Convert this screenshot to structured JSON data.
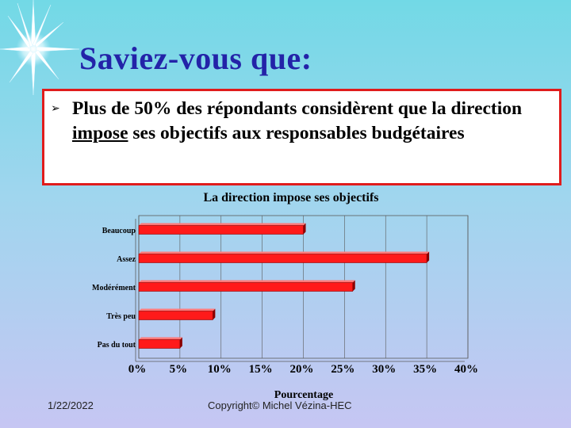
{
  "slide": {
    "title": "Saviez-vous que:",
    "bullet_text_before": "Plus de 50% des répondants considèrent que la direction ",
    "bullet_text_underlined": "impose",
    "bullet_text_after": " ses objectifs aux responsables budgétaires",
    "date": "1/22/2022",
    "copyright": "Copyright© Michel Vézina-HEC"
  },
  "icons": {
    "bullet": "arrow-right-icon",
    "decoration": "starburst-icon"
  },
  "colors": {
    "title": "#2323a8",
    "callout_border": "#e01c1c",
    "bar": "#ff1a1a",
    "bar_edge": "#8a0000"
  },
  "chart_data": {
    "type": "bar",
    "orientation": "horizontal",
    "title": "La direction impose ses objectifs",
    "xlabel": "Pourcentage",
    "ylabel": "",
    "categories": [
      "Beaucoup",
      "Assez",
      "Modérément",
      "Très peu",
      "Pas du tout"
    ],
    "values": [
      0.2,
      0.35,
      0.26,
      0.09,
      0.05
    ],
    "xlim": [
      0,
      0.4
    ],
    "xticks": [
      0,
      0.05,
      0.1,
      0.15,
      0.2,
      0.25,
      0.3,
      0.35,
      0.4
    ],
    "xtick_labels": [
      "0%",
      "5%",
      "10%",
      "15%",
      "20%",
      "25%",
      "30%",
      "35%",
      "40%"
    ],
    "grid": true,
    "legend": "none"
  }
}
